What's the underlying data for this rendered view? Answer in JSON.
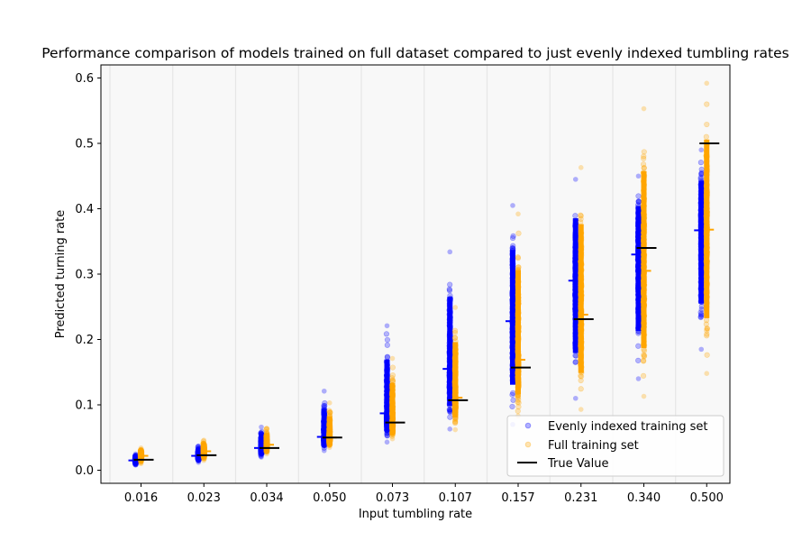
{
  "chart_data": {
    "type": "scatter",
    "title": "Performance comparison of models trained on full dataset compared to just evenly indexed tumbling rates",
    "xlabel": "Input tumbling rate",
    "ylabel": "Predicted turning rate",
    "categories": [
      "0.016",
      "0.023",
      "0.034",
      "0.050",
      "0.073",
      "0.107",
      "0.157",
      "0.231",
      "0.340",
      "0.500"
    ],
    "ylim": [
      -0.02,
      0.62
    ],
    "yticks": [
      "0.0",
      "0.1",
      "0.2",
      "0.3",
      "0.4",
      "0.5",
      "0.6"
    ],
    "grid": "vertical separators between categories",
    "legend_position": "lower right",
    "series": [
      {
        "name": "Evenly indexed training set",
        "color": "#0000ff",
        "marker": "circle",
        "mean": [
          0.015,
          0.022,
          0.034,
          0.051,
          0.087,
          0.155,
          0.228,
          0.29,
          0.33,
          0.367
        ],
        "min": [
          0.008,
          0.012,
          0.02,
          0.03,
          0.043,
          0.063,
          0.07,
          0.11,
          0.14,
          0.185
        ],
        "max": [
          0.025,
          0.037,
          0.066,
          0.121,
          0.221,
          0.334,
          0.405,
          0.445,
          0.45,
          0.49
        ]
      },
      {
        "name": "Full training set",
        "color": "#ffa500",
        "marker": "circle",
        "mean": [
          0.022,
          0.029,
          0.039,
          0.05,
          0.073,
          0.111,
          0.169,
          0.238,
          0.305,
          0.368
        ],
        "min": [
          0.01,
          0.015,
          0.025,
          0.035,
          0.048,
          0.062,
          0.083,
          0.093,
          0.113,
          0.148
        ],
        "max": [
          0.034,
          0.046,
          0.064,
          0.103,
          0.171,
          0.249,
          0.392,
          0.463,
          0.553,
          0.592
        ]
      },
      {
        "name": "True Value",
        "color": "#000000",
        "marker": "hline",
        "values": [
          0.016,
          0.023,
          0.034,
          0.05,
          0.073,
          0.107,
          0.157,
          0.231,
          0.34,
          0.5
        ]
      }
    ]
  }
}
